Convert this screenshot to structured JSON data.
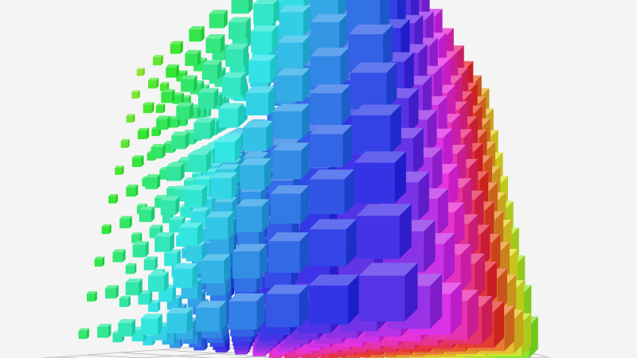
{
  "scene": {
    "background": "#f4f4f4",
    "grid_color": "#b8b8b8",
    "grid_divisions": 10,
    "cube_grid": [
      10,
      10,
      10
    ],
    "color_mode": "hue-gradient"
  }
}
